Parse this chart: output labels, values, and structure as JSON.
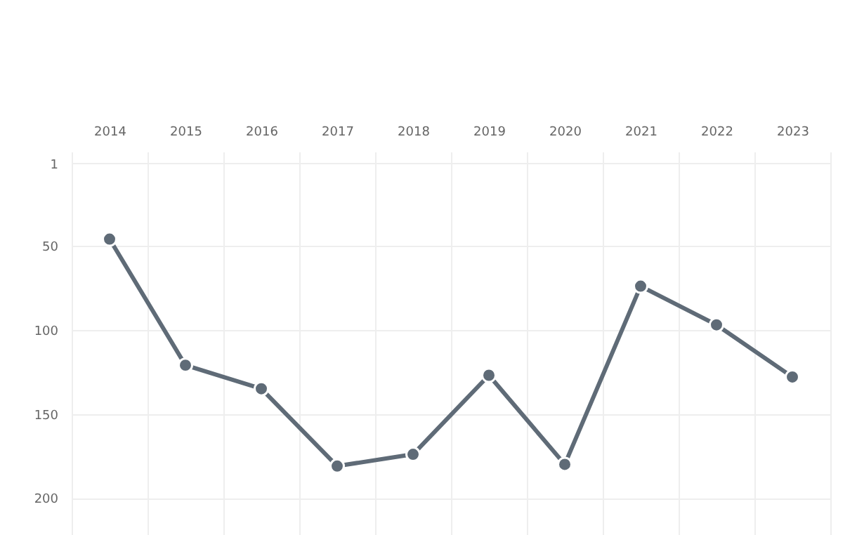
{
  "chart_data": {
    "type": "line",
    "categories": [
      "2014",
      "2015",
      "2016",
      "2017",
      "2018",
      "2019",
      "2020",
      "2021",
      "2022",
      "2023"
    ],
    "series": [
      {
        "color": "#5f6b77",
        "values": [
          46,
          121,
          135,
          181,
          174,
          127,
          180,
          74,
          97,
          128
        ]
      }
    ],
    "ylim": [
      222,
      -6
    ],
    "yticks": [
      1,
      50,
      100,
      150,
      200
    ],
    "grid": true,
    "marker": "circle"
  }
}
